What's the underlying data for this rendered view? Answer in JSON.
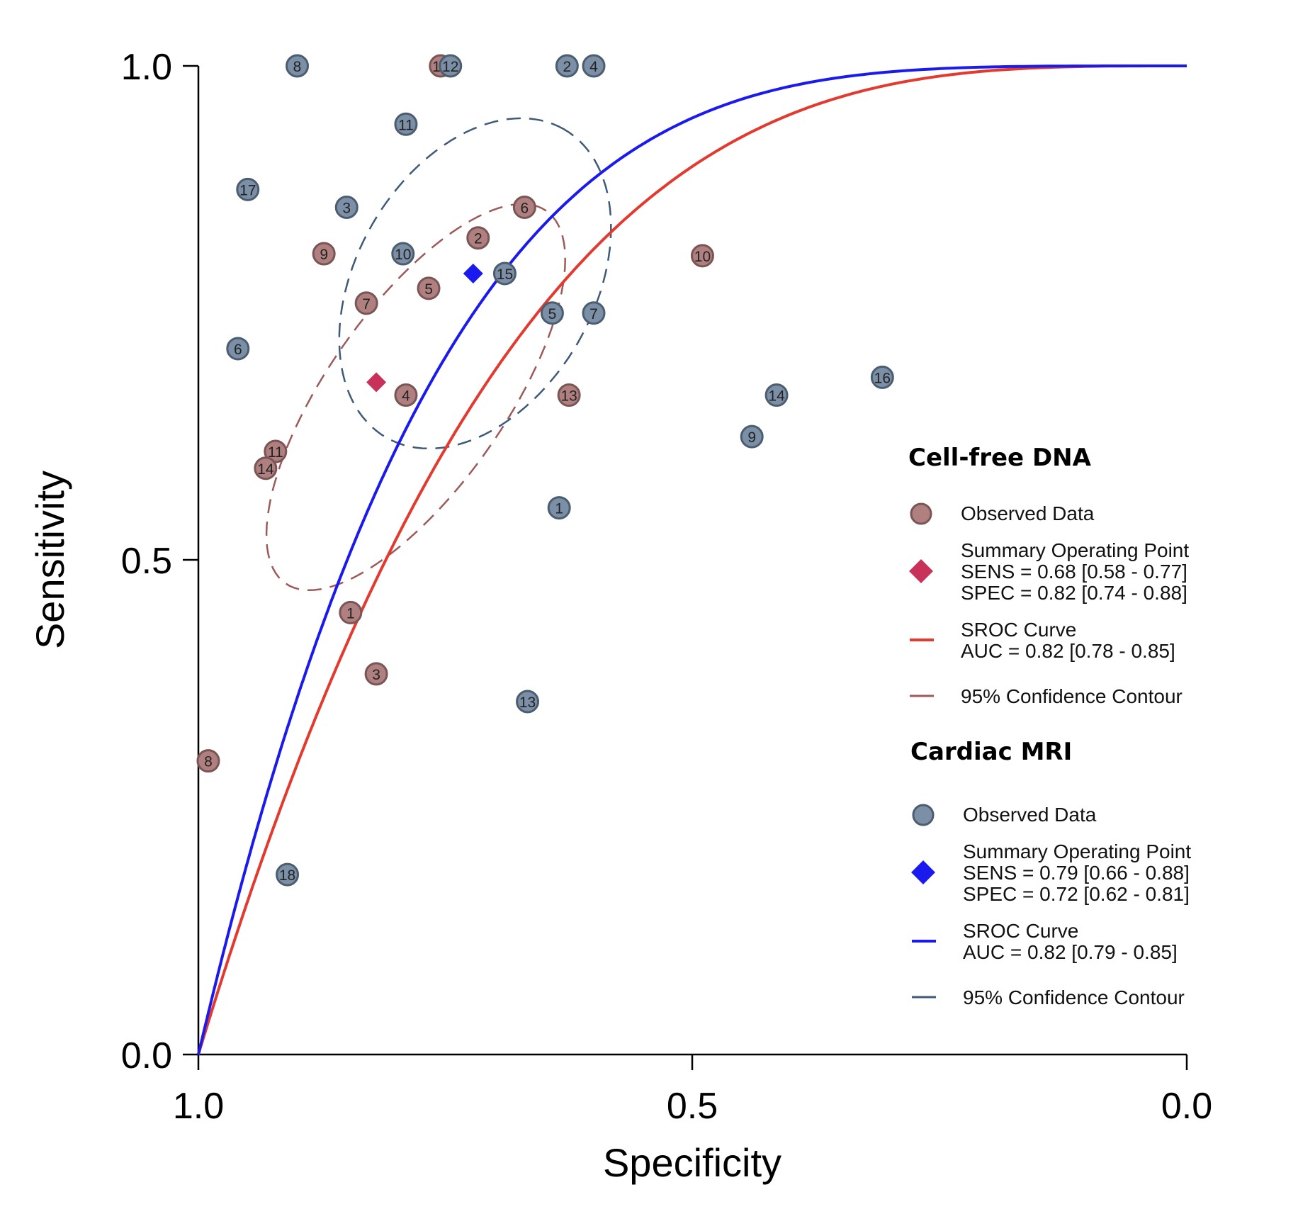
{
  "chart_data": {
    "type": "scatter",
    "xlabel": "Specificity",
    "ylabel": "Sensitivity",
    "xlim": [
      1.0,
      0.0
    ],
    "ylim": [
      0.0,
      1.0
    ],
    "x_ticks": [
      "1.0",
      "0.5",
      "0.0"
    ],
    "y_ticks": [
      "0.0",
      "0.5",
      "1.0"
    ],
    "grid": false,
    "legend_position": "right",
    "groups": [
      {
        "name": "Cell-free DNA",
        "observed_label": "Observed Data",
        "point_color": "#b08080",
        "points": [
          {
            "id": "1",
            "spec": 0.846,
            "sens": 0.447
          },
          {
            "id": "2",
            "spec": 0.717,
            "sens": 0.826
          },
          {
            "id": "3",
            "spec": 0.82,
            "sens": 0.385
          },
          {
            "id": "4",
            "spec": 0.79,
            "sens": 0.667
          },
          {
            "id": "5",
            "spec": 0.767,
            "sens": 0.775
          },
          {
            "id": "6",
            "spec": 0.67,
            "sens": 0.857
          },
          {
            "id": "7",
            "spec": 0.83,
            "sens": 0.76
          },
          {
            "id": "8",
            "spec": 0.99,
            "sens": 0.297
          },
          {
            "id": "9",
            "spec": 0.873,
            "sens": 0.81
          },
          {
            "id": "10",
            "spec": 0.49,
            "sens": 0.808
          },
          {
            "id": "11",
            "spec": 0.922,
            "sens": 0.61
          },
          {
            "id": "12",
            "spec": 0.755,
            "sens": 1.0
          },
          {
            "id": "13",
            "spec": 0.625,
            "sens": 0.667
          },
          {
            "id": "14",
            "spec": 0.932,
            "sens": 0.593
          }
        ],
        "summary": {
          "label": "Summary Operating  Point",
          "sens_text": "SENS = 0.68 [0.58 - 0.77]",
          "spec_text": "SPEC = 0.82 [0.74 - 0.88]",
          "sens": 0.68,
          "spec": 0.82,
          "color": "#c8325a"
        },
        "sroc": {
          "label": "SROC Curve",
          "auc_text": "AUC = 0.82 [0.78 - 0.85]",
          "color": "#e23a2e",
          "shape_k": 3.3
        },
        "contour": {
          "label": "95% Confidence Contour",
          "color": "#9c5a5a",
          "center_spec": 0.78,
          "center_sens": 0.665,
          "radius_a": 0.23,
          "radius_b": 0.09,
          "angle_deg": 55
        }
      },
      {
        "name": "Cardiac MRI",
        "observed_label": "Observed Data",
        "point_color": "#7b8fa6",
        "points": [
          {
            "id": "1",
            "spec": 0.635,
            "sens": 0.553
          },
          {
            "id": "2",
            "spec": 0.627,
            "sens": 1.0
          },
          {
            "id": "3",
            "spec": 0.85,
            "sens": 0.857
          },
          {
            "id": "4",
            "spec": 0.6,
            "sens": 1.0
          },
          {
            "id": "5",
            "spec": 0.642,
            "sens": 0.75
          },
          {
            "id": "6",
            "spec": 0.96,
            "sens": 0.714
          },
          {
            "id": "7",
            "spec": 0.6,
            "sens": 0.75
          },
          {
            "id": "8",
            "spec": 0.9,
            "sens": 1.0
          },
          {
            "id": "9",
            "spec": 0.44,
            "sens": 0.625
          },
          {
            "id": "10",
            "spec": 0.793,
            "sens": 0.81
          },
          {
            "id": "11",
            "spec": 0.79,
            "sens": 0.941
          },
          {
            "id": "12",
            "spec": 0.745,
            "sens": 1.0
          },
          {
            "id": "13",
            "spec": 0.667,
            "sens": 0.357
          },
          {
            "id": "14",
            "spec": 0.415,
            "sens": 0.667
          },
          {
            "id": "15",
            "spec": 0.69,
            "sens": 0.79
          },
          {
            "id": "16",
            "spec": 0.308,
            "sens": 0.685
          },
          {
            "id": "17",
            "spec": 0.95,
            "sens": 0.875
          },
          {
            "id": "18",
            "spec": 0.91,
            "sens": 0.182
          }
        ],
        "summary": {
          "label": "Summary Operating  Point",
          "sens_text": "SENS = 0.79 [0.66 - 0.88]",
          "spec_text": "SPEC = 0.72 [0.62 - 0.81]",
          "sens": 0.79,
          "spec": 0.722,
          "color": "#1a1aee"
        },
        "sroc": {
          "label": "SROC Curve",
          "auc_text": "AUC = 0.82 [0.79 - 0.85]",
          "color": "#1a1aee",
          "shape_k": 4.25
        },
        "contour": {
          "label": "95% Confidence Contour",
          "color": "#3f5a78",
          "center_spec": 0.72,
          "center_sens": 0.78,
          "radius_a": 0.18,
          "radius_b": 0.12,
          "angle_deg": 60
        }
      }
    ]
  }
}
